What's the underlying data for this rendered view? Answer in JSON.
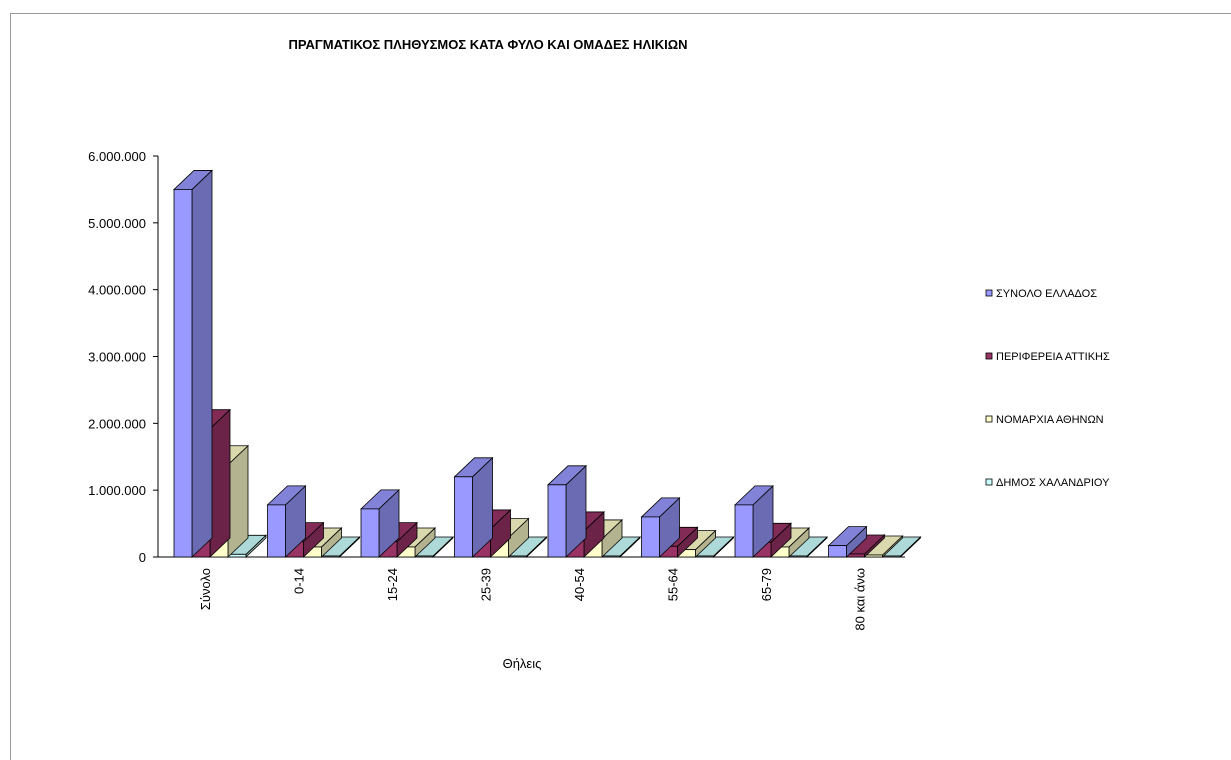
{
  "chart_data": {
    "type": "bar",
    "title": "ΠΡΑΓΜΑΤΙΚΟΣ ΠΛΗΘΥΣΜΟΣ ΚΑΤΑ ΦΥΛΟ ΚΑΙ ΟΜΑΔΕΣ ΗΛΙΚΙΩΝ",
    "xlabel": "Θήλεις",
    "ylabel": "",
    "ylim": [
      0,
      6000000
    ],
    "yticks": [
      "0",
      "1.000.000",
      "2.000.000",
      "3.000.000",
      "4.000.000",
      "5.000.000",
      "6.000.000"
    ],
    "categories": [
      "Σύνολο",
      "0-14",
      "15-24",
      "25-39",
      "40-54",
      "55-64",
      "65-79",
      "80 και άνω"
    ],
    "legend_position": "right",
    "grid": false,
    "series": [
      {
        "name": "ΣΥΝΟΛΟ ΕΛΛΑΔΟΣ",
        "color": "#9999ff",
        "values": [
          5500000,
          780000,
          720000,
          1200000,
          1080000,
          600000,
          780000,
          170000
        ]
      },
      {
        "name": "ΠΕΡΙΦΕΡΕΙΑ ΑΤΤΙΚΗΣ",
        "color": "#993366",
        "values": [
          1920000,
          230000,
          230000,
          420000,
          390000,
          160000,
          220000,
          45000
        ]
      },
      {
        "name": "ΝΟΜΑΡΧΙΑ ΑΘΗΝΩΝ",
        "color": "#ffffcc",
        "values": [
          1380000,
          150000,
          150000,
          290000,
          270000,
          110000,
          150000,
          30000
        ]
      },
      {
        "name": "ΔΗΜΟΣ ΧΑΛΑΝΔΡΙΟΥ",
        "color": "#ccffff",
        "values": [
          40000,
          5000,
          5000,
          9000,
          8000,
          3000,
          4000,
          1000
        ]
      }
    ]
  }
}
